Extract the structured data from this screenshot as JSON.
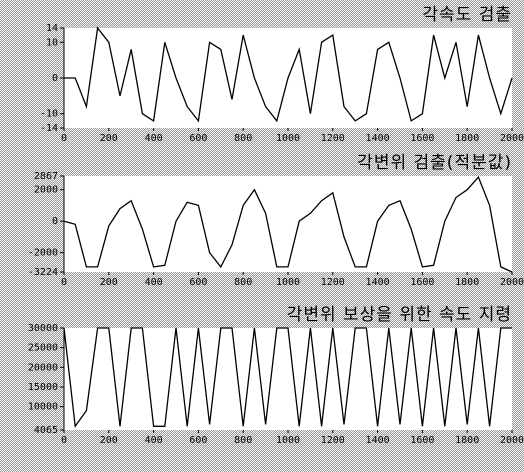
{
  "chart_data": [
    {
      "type": "line",
      "title": "각속도 검출",
      "color": "#000000",
      "x": [
        0,
        50,
        100,
        150,
        200,
        250,
        300,
        350,
        400,
        450,
        500,
        550,
        600,
        650,
        700,
        750,
        800,
        850,
        900,
        950,
        1000,
        1050,
        1100,
        1150,
        1200,
        1250,
        1300,
        1350,
        1400,
        1450,
        1500,
        1550,
        1600,
        1650,
        1700,
        1750,
        1800,
        1850,
        1900,
        1950,
        2000
      ],
      "values": [
        0,
        0,
        -8,
        14,
        10,
        -5,
        8,
        -10,
        -12,
        10,
        0,
        -8,
        -12,
        10,
        8,
        -6,
        12,
        0,
        -8,
        -12,
        0,
        8,
        -10,
        10,
        12,
        -8,
        -12,
        -10,
        8,
        10,
        0,
        -12,
        -10,
        12,
        0,
        10,
        -8,
        12,
        0,
        -10,
        0
      ],
      "xlim": [
        0,
        2000
      ],
      "xticks": [
        0,
        200,
        400,
        600,
        800,
        1000,
        1200,
        1400,
        1600,
        1800,
        2000
      ],
      "ylim": [
        -14,
        14
      ],
      "yticks": [
        14,
        10,
        0,
        -10,
        -14
      ]
    },
    {
      "type": "line",
      "title": "각변위 검출(적분값)",
      "color": "#000000",
      "x": [
        0,
        50,
        100,
        150,
        200,
        250,
        300,
        350,
        400,
        450,
        500,
        550,
        600,
        650,
        700,
        750,
        800,
        850,
        900,
        950,
        1000,
        1050,
        1100,
        1150,
        1200,
        1250,
        1300,
        1350,
        1400,
        1450,
        1500,
        1550,
        1600,
        1650,
        1700,
        1750,
        1800,
        1850,
        1900,
        1950,
        2000
      ],
      "values": [
        0,
        -200,
        -2900,
        -2900,
        -300,
        800,
        1300,
        -500,
        -2900,
        -2800,
        0,
        1200,
        1000,
        -2000,
        -2900,
        -1500,
        1000,
        2000,
        500,
        -2900,
        -2900,
        0,
        500,
        1300,
        1800,
        -1000,
        -2900,
        -2900,
        0,
        1000,
        1300,
        -500,
        -2900,
        -2800,
        0,
        1500,
        2000,
        2800,
        1000,
        -2900,
        -3224
      ],
      "xlim": [
        0,
        2000
      ],
      "xticks": [
        0,
        200,
        400,
        600,
        800,
        1000,
        1200,
        1400,
        1600,
        1800,
        2000
      ],
      "ylim": [
        -3224,
        2867
      ],
      "yticks": [
        2867,
        2000,
        0,
        -2000,
        -3224
      ]
    },
    {
      "type": "line",
      "title": "각변위 보상을 위한 속도 지령",
      "color": "#000000",
      "x": [
        0,
        50,
        100,
        150,
        200,
        250,
        300,
        350,
        400,
        450,
        500,
        550,
        600,
        650,
        700,
        750,
        800,
        850,
        900,
        950,
        1000,
        1050,
        1100,
        1150,
        1200,
        1250,
        1300,
        1350,
        1400,
        1450,
        1500,
        1550,
        1600,
        1650,
        1700,
        1750,
        1800,
        1850,
        1900,
        1950,
        2000
      ],
      "values": [
        30000,
        5000,
        9000,
        30000,
        30000,
        5000,
        30000,
        30000,
        5000,
        5000,
        30000,
        5000,
        30000,
        5500,
        30000,
        30000,
        5000,
        30000,
        5500,
        30000,
        30000,
        5000,
        30000,
        5000,
        30000,
        5500,
        30000,
        30000,
        5000,
        30000,
        5500,
        30000,
        5000,
        30000,
        5000,
        30000,
        5500,
        30000,
        5000,
        30000,
        30000
      ],
      "xlim": [
        0,
        2000
      ],
      "xticks": [
        0,
        200,
        400,
        600,
        800,
        1000,
        1200,
        1400,
        1600,
        1800,
        2000
      ],
      "ylim": [
        4065,
        30000
      ],
      "yticks": [
        30000,
        25000,
        20000,
        15000,
        10000,
        4065
      ]
    }
  ]
}
